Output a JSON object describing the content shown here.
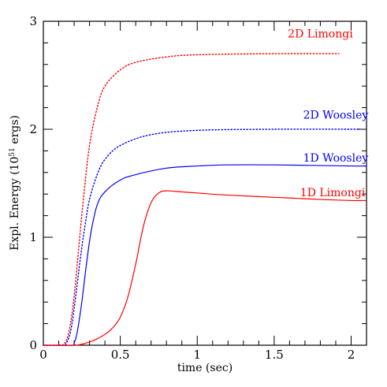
{
  "chart_data": {
    "type": "line",
    "xlabel": "time (sec)",
    "ylabel": "Expl. Energy (10",
    "ylabel_sup": "51",
    "ylabel_end": " ergs)",
    "xlim": [
      0,
      2.1
    ],
    "ylim": [
      0,
      3
    ],
    "x_ticks": [
      {
        "value": 0,
        "label": "0"
      },
      {
        "value": 0.5,
        "label": "0.5"
      },
      {
        "value": 1,
        "label": "1"
      },
      {
        "value": 1.5,
        "label": "1.5"
      },
      {
        "value": 2,
        "label": "2"
      }
    ],
    "y_ticks": [
      {
        "value": 0,
        "label": "0"
      },
      {
        "value": 1,
        "label": "1"
      },
      {
        "value": 2,
        "label": "2"
      },
      {
        "value": 3,
        "label": "3"
      }
    ],
    "grid": false,
    "series": [
      {
        "name": "2D Limongi",
        "color": "#ff0000",
        "style": "dotted",
        "label_at": [
          1.8,
          2.85
        ],
        "points": [
          [
            0.0,
            0
          ],
          [
            0.1,
            0
          ],
          [
            0.14,
            0.02
          ],
          [
            0.17,
            0.15
          ],
          [
            0.2,
            0.45
          ],
          [
            0.23,
            0.9
          ],
          [
            0.26,
            1.35
          ],
          [
            0.3,
            1.85
          ],
          [
            0.35,
            2.2
          ],
          [
            0.4,
            2.4
          ],
          [
            0.5,
            2.55
          ],
          [
            0.6,
            2.62
          ],
          [
            0.8,
            2.67
          ],
          [
            1.0,
            2.69
          ],
          [
            1.5,
            2.7
          ],
          [
            1.92,
            2.7
          ]
        ]
      },
      {
        "name": "2D Woosley",
        "color": "#0000ff",
        "style": "dotted",
        "label_at": [
          1.9,
          2.1
        ],
        "points": [
          [
            0.0,
            0
          ],
          [
            0.12,
            0
          ],
          [
            0.15,
            0.02
          ],
          [
            0.18,
            0.15
          ],
          [
            0.21,
            0.45
          ],
          [
            0.24,
            0.8
          ],
          [
            0.27,
            1.1
          ],
          [
            0.3,
            1.35
          ],
          [
            0.35,
            1.58
          ],
          [
            0.4,
            1.72
          ],
          [
            0.5,
            1.85
          ],
          [
            0.7,
            1.95
          ],
          [
            1.0,
            1.99
          ],
          [
            1.5,
            2.0
          ],
          [
            2.0,
            2.0
          ],
          [
            2.05,
            2.0
          ]
        ]
      },
      {
        "name": "1D Woosley",
        "color": "#0000ff",
        "style": "solid",
        "label_at": [
          1.9,
          1.7
        ],
        "points": [
          [
            0.0,
            0
          ],
          [
            0.19,
            0
          ],
          [
            0.2,
            0.02
          ],
          [
            0.22,
            0.12
          ],
          [
            0.25,
            0.4
          ],
          [
            0.28,
            0.75
          ],
          [
            0.31,
            1.05
          ],
          [
            0.35,
            1.3
          ],
          [
            0.4,
            1.42
          ],
          [
            0.5,
            1.53
          ],
          [
            0.6,
            1.58
          ],
          [
            0.8,
            1.64
          ],
          [
            1.0,
            1.66
          ],
          [
            1.2,
            1.67
          ],
          [
            1.5,
            1.67
          ],
          [
            2.0,
            1.66
          ],
          [
            2.1,
            1.66
          ]
        ]
      },
      {
        "name": "1D Limongi",
        "color": "#ff0000",
        "style": "solid",
        "label_at": [
          1.88,
          1.38
        ],
        "points": [
          [
            0.0,
            0
          ],
          [
            0.2,
            0
          ],
          [
            0.25,
            0.01
          ],
          [
            0.3,
            0.03
          ],
          [
            0.35,
            0.06
          ],
          [
            0.4,
            0.1
          ],
          [
            0.45,
            0.16
          ],
          [
            0.5,
            0.26
          ],
          [
            0.55,
            0.45
          ],
          [
            0.6,
            0.75
          ],
          [
            0.65,
            1.1
          ],
          [
            0.7,
            1.32
          ],
          [
            0.75,
            1.41
          ],
          [
            0.8,
            1.43
          ],
          [
            0.9,
            1.42
          ],
          [
            1.0,
            1.41
          ],
          [
            1.2,
            1.39
          ],
          [
            1.5,
            1.37
          ],
          [
            1.8,
            1.35
          ],
          [
            2.0,
            1.34
          ],
          [
            2.1,
            1.34
          ]
        ]
      }
    ]
  }
}
